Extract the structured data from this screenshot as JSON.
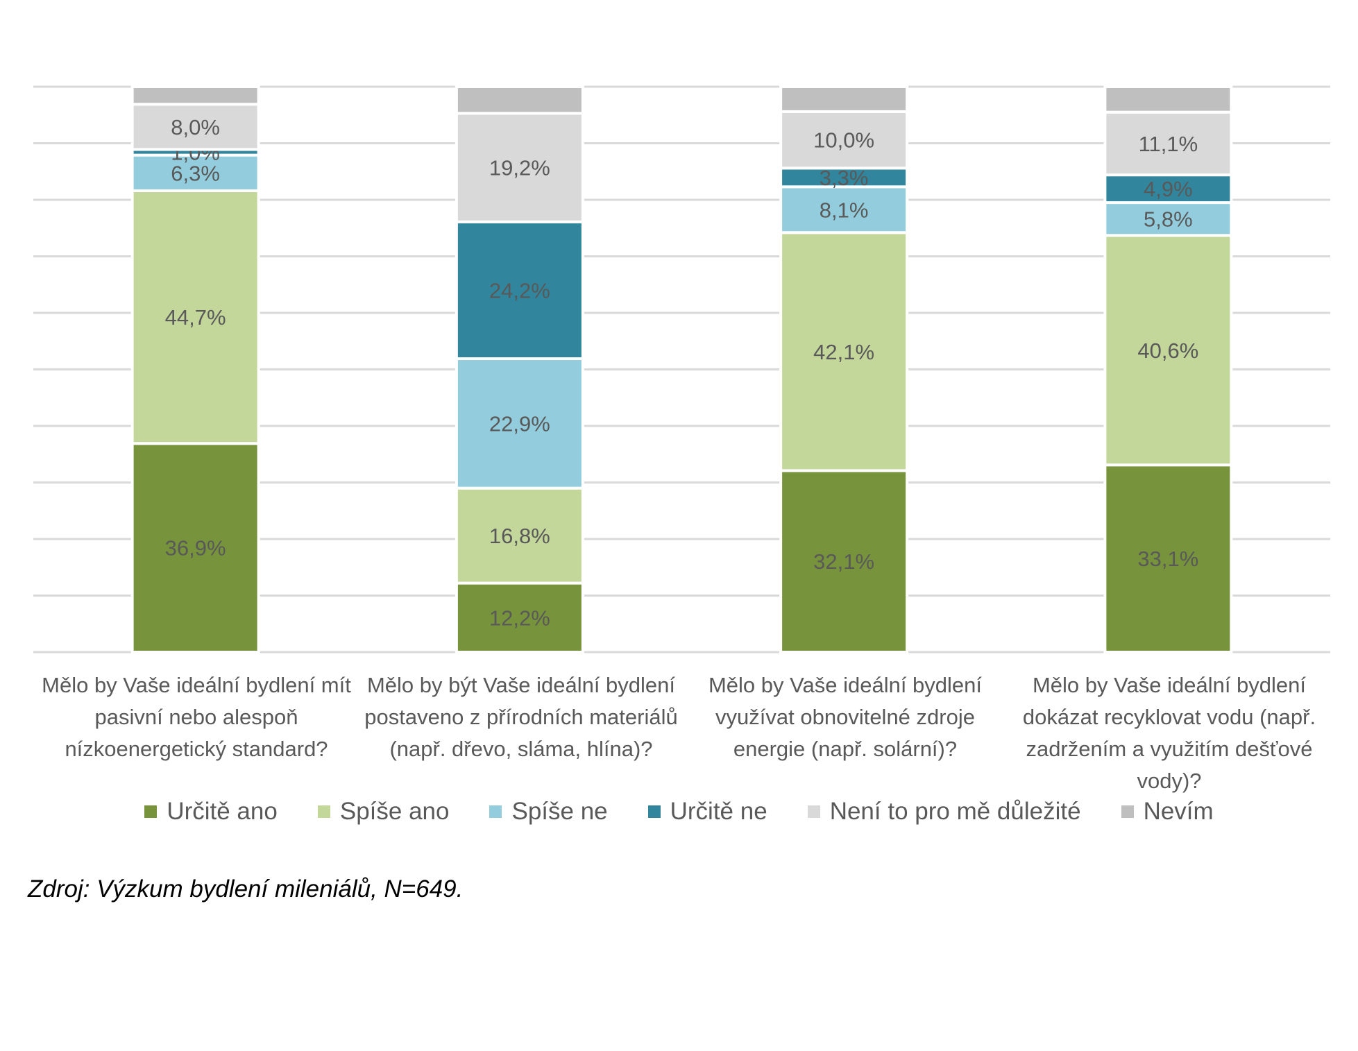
{
  "chart_data": {
    "type": "bar",
    "stacked": true,
    "normalized": true,
    "ylim": [
      0,
      100
    ],
    "grid": true,
    "legend_position": "bottom",
    "categories": [
      "Mělo by Vaše ideální bydlení mít pasivní nebo alespoň nízkoenergetický standard?",
      "Mělo by být Vaše ideální bydlení postaveno z přírodních materiálů (např. dřevo, sláma, hlína)?",
      "Mělo by Vaše ideální bydlení využívat obnovitelné zdroje energie (např. solární)?",
      "Mělo by Vaše ideální bydlení dokázat recyklovat vodu (např. zadržením a využitím dešťové vody)?"
    ],
    "series": [
      {
        "name": "Určitě ano",
        "color": "#77933C",
        "values": [
          36.9,
          12.2,
          32.1,
          33.1
        ],
        "labels": [
          "36,9%",
          "12,2%",
          "32,1%",
          "33,1%"
        ]
      },
      {
        "name": "Spíše ano",
        "color": "#C4D79B",
        "values": [
          44.7,
          16.8,
          42.1,
          40.6
        ],
        "labels": [
          "44,7%",
          "16,8%",
          "42,1%",
          "40,6%"
        ]
      },
      {
        "name": "Spíše ne",
        "color": "#93CDDD",
        "values": [
          6.3,
          22.9,
          8.1,
          5.8
        ],
        "labels": [
          "6,3%",
          "22,9%",
          "8,1%",
          "5,8%"
        ]
      },
      {
        "name": "Určitě ne",
        "color": "#31859C",
        "values": [
          1.0,
          24.2,
          3.3,
          4.9
        ],
        "labels": [
          "1,0%",
          "24,2%",
          "3,3%",
          "4,9%"
        ]
      },
      {
        "name": "Není to pro mě důležité",
        "color": "#D9D9D9",
        "values": [
          8.0,
          19.2,
          10.0,
          11.1
        ],
        "labels": [
          "8,0%",
          "19,2%",
          "10,0%",
          "11,1%"
        ]
      },
      {
        "name": "Nevím",
        "color": "#BFBFBF",
        "values": [
          3.1,
          4.7,
          4.4,
          4.5
        ],
        "labels": [
          "",
          "",
          "",
          ""
        ]
      }
    ]
  },
  "source": "Zdroj: Výzkum bydlení mileniálů, N=649."
}
